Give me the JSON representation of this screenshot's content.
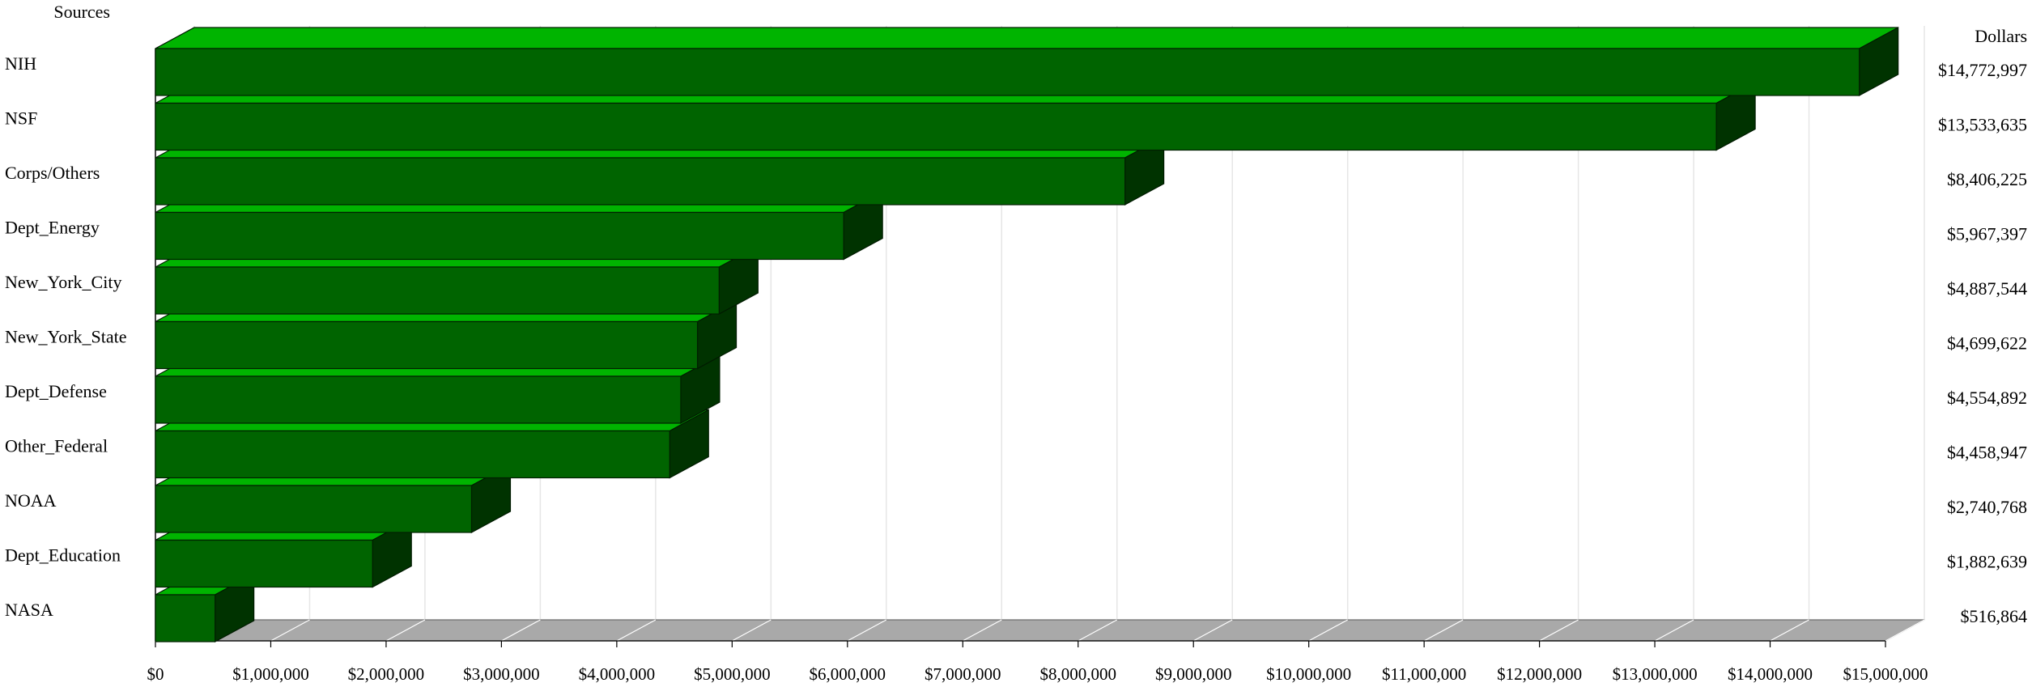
{
  "chart_data": {
    "type": "bar",
    "orientation": "horizontal",
    "three_d": true,
    "y_axis_title": "Sources",
    "right_axis_title": "Dollars",
    "categories": [
      "NIH",
      "NSF",
      "Corps/Others",
      "Dept_Energy",
      "New_York_City",
      "New_York_State",
      "Dept_Defense",
      "Other_Federal",
      "NOAA",
      "Dept_Education",
      "NASA"
    ],
    "values": [
      14772997,
      13533635,
      8406225,
      5967397,
      4887544,
      4699622,
      4554892,
      4458947,
      2740768,
      1882639,
      516864
    ],
    "value_labels": [
      "$14,772,997",
      "$13,533,635",
      "$8,406,225",
      "$5,967,397",
      "$4,887,544",
      "$4,699,622",
      "$4,554,892",
      "$4,458,947",
      "$2,740,768",
      "$1,882,639",
      "$516,864"
    ],
    "xlim": [
      0,
      15000000
    ],
    "x_ticks": [
      0,
      1000000,
      2000000,
      3000000,
      4000000,
      5000000,
      6000000,
      7000000,
      8000000,
      9000000,
      10000000,
      11000000,
      12000000,
      13000000,
      14000000,
      15000000
    ],
    "x_tick_labels": [
      "$0",
      "$1,000,000",
      "$2,000,000",
      "$3,000,000",
      "$4,000,000",
      "$5,000,000",
      "$6,000,000",
      "$7,000,000",
      "$8,000,000",
      "$9,000,000",
      "$10,000,000",
      "$11,000,000",
      "$12,000,000",
      "$13,000,000",
      "$14,000,000",
      "$15,000,000"
    ],
    "grid": true,
    "colors": {
      "bar_front": "#006400",
      "bar_top": "#00b400",
      "bar_side": "#003300",
      "floor": "#a9a9a9",
      "grid": "#e6e6e6"
    }
  }
}
